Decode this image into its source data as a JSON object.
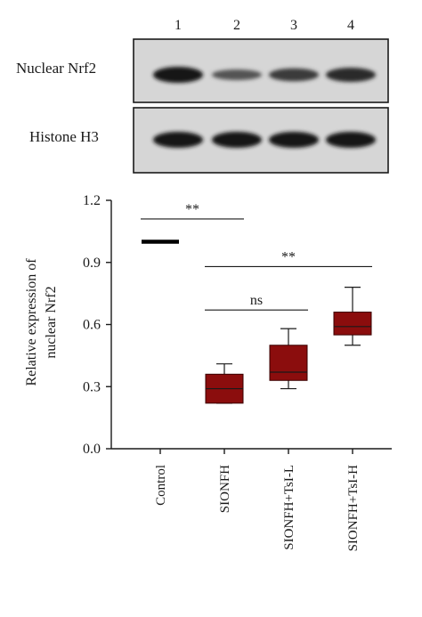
{
  "blot": {
    "lanes": [
      "1",
      "2",
      "3",
      "4"
    ],
    "panels": [
      {
        "label": "Nuclear Nrf2",
        "band_intensity": [
          1.0,
          0.4,
          0.65,
          0.8
        ]
      },
      {
        "label": "Histone H3",
        "band_intensity": [
          1.0,
          1.0,
          1.0,
          1.0
        ]
      }
    ]
  },
  "chart_data": {
    "type": "box",
    "ylabel": "Relative expression of nuclear Nrf2",
    "ylim": [
      0.0,
      1.2
    ],
    "yticks": [
      "0.0",
      "0.3",
      "0.6",
      "0.9",
      "1.2"
    ],
    "categories": [
      "Control",
      "SIONFH",
      "SIONFH+TsI-L",
      "SIONFH+TsI-H"
    ],
    "colors": {
      "box": "#8b0d0d",
      "control": "#000000",
      "axis": "#1a1a1a"
    },
    "boxes": [
      {
        "category": "Control",
        "min": 1.0,
        "q1": 1.0,
        "median": 1.0,
        "q3": 1.0,
        "max": 1.0
      },
      {
        "category": "SIONFH",
        "min": 0.22,
        "q1": 0.22,
        "median": 0.29,
        "q3": 0.36,
        "max": 0.41
      },
      {
        "category": "SIONFH+TsI-L",
        "min": 0.29,
        "q1": 0.33,
        "median": 0.37,
        "q3": 0.5,
        "max": 0.58
      },
      {
        "category": "SIONFH+TsI-H",
        "min": 0.5,
        "q1": 0.55,
        "median": 0.59,
        "q3": 0.66,
        "max": 0.78
      }
    ],
    "annotations": [
      {
        "text": "**",
        "from": 0,
        "to": 1,
        "y": 1.11
      },
      {
        "text": "**",
        "from": 1,
        "to": 3,
        "y": 0.88
      },
      {
        "text": "ns",
        "from": 1,
        "to": 2,
        "y": 0.67
      }
    ]
  }
}
